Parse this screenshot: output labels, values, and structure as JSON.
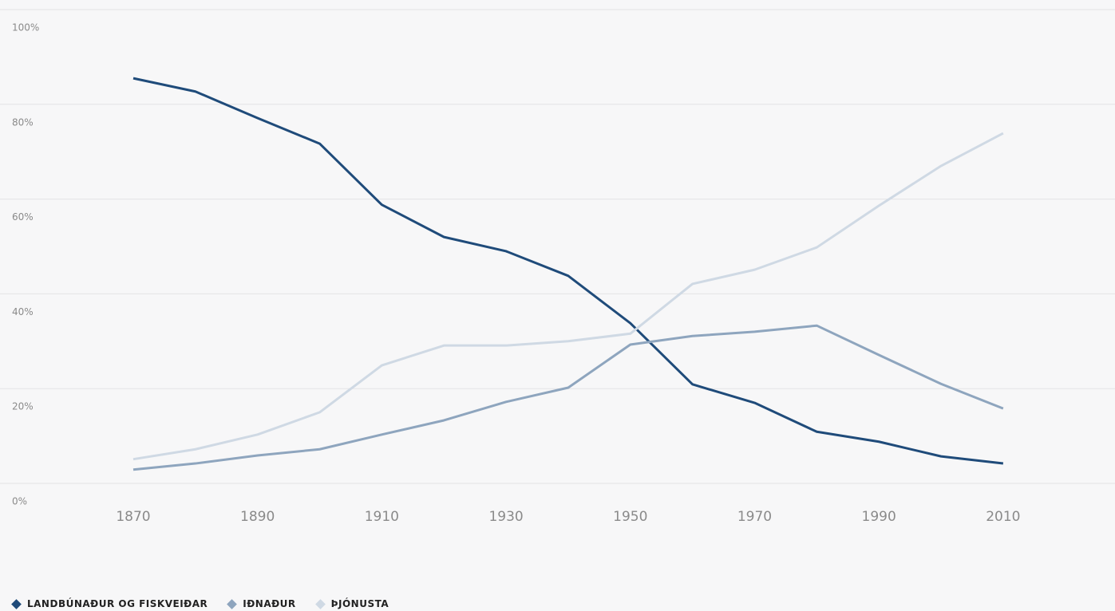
{
  "chart_data": {
    "type": "line",
    "x": [
      1870,
      1880,
      1890,
      1900,
      1910,
      1920,
      1930,
      1940,
      1950,
      1960,
      1970,
      1980,
      1990,
      2000,
      2010
    ],
    "series": [
      {
        "name": "LANDBÚNAÐUR OG FISKVEIÐAR",
        "color": "#1f4b7a",
        "values": [
          85.5,
          82.7,
          77.1,
          71.7,
          58.8,
          52.0,
          49.0,
          43.8,
          33.8,
          20.9,
          17.0,
          10.9,
          8.8,
          5.7,
          4.2
        ]
      },
      {
        "name": "IÐNAÐUR",
        "color": "#8ea5be",
        "values": [
          2.9,
          4.2,
          5.9,
          7.2,
          10.3,
          13.3,
          17.2,
          20.2,
          29.3,
          31.1,
          32.0,
          33.3,
          27.1,
          21.0,
          15.8
        ]
      },
      {
        "name": "ÞJÓNUSTA",
        "color": "#cfd9e4",
        "values": [
          5.1,
          7.2,
          10.3,
          15.0,
          24.9,
          29.1,
          29.1,
          30.0,
          31.6,
          42.1,
          45.1,
          49.8,
          58.6,
          67.0,
          73.9
        ]
      }
    ],
    "xlim": [
      1848.55,
      2028
    ],
    "xticks": [
      1870,
      1890,
      1910,
      1930,
      1950,
      1970,
      1990,
      2010
    ],
    "ylim": [
      0,
      100
    ],
    "yticks": [
      {
        "value": 0,
        "label": "0%"
      },
      {
        "value": 20,
        "label": "20%"
      },
      {
        "value": 40,
        "label": "40%"
      },
      {
        "value": 60,
        "label": "60%"
      },
      {
        "value": 80,
        "label": "80%"
      },
      {
        "value": 100,
        "label": "100%"
      }
    ],
    "grid": true,
    "legend": "bottom-left"
  }
}
